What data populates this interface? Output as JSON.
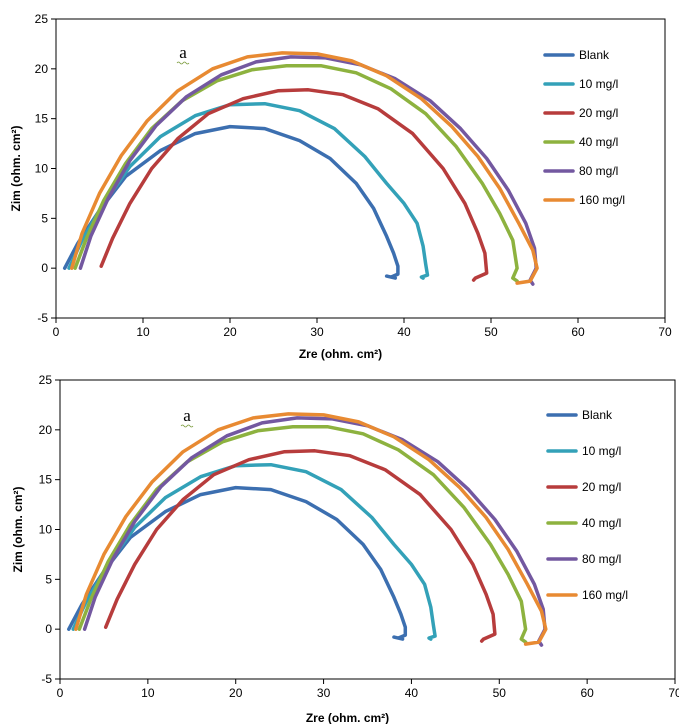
{
  "chart_data": [
    {
      "type": "line",
      "panel_label": "a",
      "xlabel": "Zre (ohm. cm²)",
      "ylabel": "Zim (ohm. cm²)",
      "xlim": [
        0,
        70
      ],
      "ylim": [
        -5,
        25
      ],
      "xticks": [
        0,
        10,
        20,
        30,
        40,
        50,
        60,
        70
      ],
      "yticks": [
        -5,
        0,
        5,
        10,
        15,
        20,
        25
      ],
      "grid": false,
      "legend": "right",
      "series": [
        {
          "name": "Blank",
          "color": "#3c6fb0",
          "x": [
            1.0,
            2.5,
            5.0,
            8.0,
            12.0,
            16.0,
            20.0,
            24.0,
            28.0,
            31.5,
            34.5,
            36.5,
            38.0,
            38.8,
            39.3,
            39.3,
            38.5,
            38.0,
            39.0
          ],
          "y": [
            0.0,
            2.5,
            5.8,
            9.2,
            11.8,
            13.5,
            14.2,
            14.0,
            12.8,
            11.0,
            8.5,
            6.0,
            3.2,
            1.5,
            0.2,
            -0.6,
            -0.9,
            -0.8,
            -1.0
          ]
        },
        {
          "name": "10 mg/l",
          "color": "#33a1b8",
          "x": [
            1.5,
            3.0,
            5.5,
            8.5,
            12.0,
            16.0,
            20.0,
            24.0,
            28.0,
            32.0,
            35.5,
            38.0,
            40.0,
            41.5,
            42.2,
            42.5,
            42.7,
            42.0,
            42.2
          ],
          "y": [
            0.0,
            2.8,
            6.5,
            10.2,
            13.2,
            15.3,
            16.4,
            16.5,
            15.8,
            14.0,
            11.2,
            8.5,
            6.5,
            4.5,
            2.2,
            0.4,
            -0.7,
            -0.9,
            -1.0
          ]
        },
        {
          "name": "20 mg/l",
          "color": "#b73c3c",
          "x": [
            5.2,
            6.5,
            8.5,
            11.0,
            14.0,
            17.5,
            21.5,
            25.5,
            29.0,
            33.0,
            37.0,
            41.0,
            44.5,
            47.0,
            48.5,
            49.3,
            49.5,
            48.2,
            48.0
          ],
          "y": [
            0.2,
            3.0,
            6.5,
            10.0,
            13.0,
            15.5,
            17.0,
            17.8,
            17.9,
            17.4,
            16.0,
            13.5,
            10.0,
            6.5,
            3.5,
            1.5,
            -0.5,
            -1.0,
            -1.2
          ]
        },
        {
          "name": "40 mg/l",
          "color": "#8db23f",
          "x": [
            2.2,
            3.5,
            5.5,
            8.0,
            11.0,
            14.5,
            18.5,
            22.5,
            26.5,
            30.5,
            34.5,
            38.5,
            42.5,
            46.0,
            49.0,
            51.0,
            52.5,
            53.0,
            52.5,
            53.0
          ],
          "y": [
            0.0,
            3.0,
            6.8,
            10.5,
            14.0,
            16.8,
            18.8,
            19.9,
            20.3,
            20.3,
            19.6,
            18.0,
            15.5,
            12.2,
            8.5,
            5.5,
            2.8,
            0.0,
            -1.0,
            -1.3
          ]
        },
        {
          "name": "80 mg/l",
          "color": "#7358a0",
          "x": [
            2.8,
            4.0,
            6.0,
            8.5,
            11.5,
            15.0,
            19.0,
            23.0,
            27.0,
            31.0,
            35.0,
            39.0,
            43.0,
            46.5,
            49.5,
            52.0,
            54.0,
            55.0,
            55.2,
            54.5,
            54.8
          ],
          "y": [
            0.0,
            3.2,
            7.0,
            10.8,
            14.3,
            17.2,
            19.4,
            20.7,
            21.2,
            21.1,
            20.4,
            19.0,
            16.8,
            14.0,
            11.0,
            7.8,
            4.5,
            2.0,
            0.0,
            -1.2,
            -1.6
          ]
        },
        {
          "name": "160 mg/l",
          "color": "#e88a32",
          "x": [
            1.8,
            3.0,
            5.0,
            7.5,
            10.5,
            14.0,
            18.0,
            22.0,
            26.0,
            30.0,
            34.0,
            38.0,
            42.0,
            45.5,
            48.5,
            51.0,
            53.2,
            54.8,
            55.3,
            54.5,
            53.0
          ],
          "y": [
            0.0,
            3.5,
            7.5,
            11.3,
            14.8,
            17.8,
            20.0,
            21.2,
            21.6,
            21.5,
            20.8,
            19.3,
            17.0,
            14.2,
            11.2,
            8.0,
            4.5,
            1.8,
            0.0,
            -1.3,
            -1.5
          ]
        }
      ]
    },
    {
      "type": "line",
      "panel_label": "a",
      "xlabel": "Zre (ohm. cm²)",
      "ylabel": "Zim (ohm. cm²)",
      "xlim": [
        0,
        70
      ],
      "ylim": [
        -5,
        25
      ],
      "xticks": [
        0,
        10,
        20,
        30,
        40,
        50,
        60,
        70
      ],
      "yticks": [
        -5,
        0,
        5,
        10,
        15,
        20,
        25
      ],
      "grid": false,
      "legend": "right",
      "series": [
        {
          "name": "Blank",
          "color": "#3c6fb0",
          "x": [
            1.0,
            2.5,
            5.0,
            8.0,
            12.0,
            16.0,
            20.0,
            24.0,
            28.0,
            31.5,
            34.5,
            36.5,
            38.0,
            38.8,
            39.3,
            39.3,
            38.5,
            38.0,
            39.0
          ],
          "y": [
            0.0,
            2.5,
            5.8,
            9.2,
            11.8,
            13.5,
            14.2,
            14.0,
            12.8,
            11.0,
            8.5,
            6.0,
            3.2,
            1.5,
            0.2,
            -0.6,
            -0.9,
            -0.8,
            -1.0
          ]
        },
        {
          "name": "10 mg/l",
          "color": "#33a1b8",
          "x": [
            1.5,
            3.0,
            5.5,
            8.5,
            12.0,
            16.0,
            20.0,
            24.0,
            28.0,
            32.0,
            35.5,
            38.0,
            40.0,
            41.5,
            42.2,
            42.5,
            42.7,
            42.0,
            42.2
          ],
          "y": [
            0.0,
            2.8,
            6.5,
            10.2,
            13.2,
            15.3,
            16.4,
            16.5,
            15.8,
            14.0,
            11.2,
            8.5,
            6.5,
            4.5,
            2.2,
            0.4,
            -0.7,
            -0.9,
            -1.0
          ]
        },
        {
          "name": "20 mg/l",
          "color": "#b73c3c",
          "x": [
            5.2,
            6.5,
            8.5,
            11.0,
            14.0,
            17.5,
            21.5,
            25.5,
            29.0,
            33.0,
            37.0,
            41.0,
            44.5,
            47.0,
            48.5,
            49.3,
            49.5,
            48.2,
            48.0
          ],
          "y": [
            0.2,
            3.0,
            6.5,
            10.0,
            13.0,
            15.5,
            17.0,
            17.8,
            17.9,
            17.4,
            16.0,
            13.5,
            10.0,
            6.5,
            3.5,
            1.5,
            -0.5,
            -1.0,
            -1.2
          ]
        },
        {
          "name": "40 mg/l",
          "color": "#8db23f",
          "x": [
            2.2,
            3.5,
            5.5,
            8.0,
            11.0,
            14.5,
            18.5,
            22.5,
            26.5,
            30.5,
            34.5,
            38.5,
            42.5,
            46.0,
            49.0,
            51.0,
            52.5,
            53.0,
            52.5,
            53.0
          ],
          "y": [
            0.0,
            3.0,
            6.8,
            10.5,
            14.0,
            16.8,
            18.8,
            19.9,
            20.3,
            20.3,
            19.6,
            18.0,
            15.5,
            12.2,
            8.5,
            5.5,
            2.8,
            0.0,
            -1.0,
            -1.3
          ]
        },
        {
          "name": "80 mg/l",
          "color": "#7358a0",
          "x": [
            2.8,
            4.0,
            6.0,
            8.5,
            11.5,
            15.0,
            19.0,
            23.0,
            27.0,
            31.0,
            35.0,
            39.0,
            43.0,
            46.5,
            49.5,
            52.0,
            54.0,
            55.0,
            55.2,
            54.5,
            54.8
          ],
          "y": [
            0.0,
            3.2,
            7.0,
            10.8,
            14.3,
            17.2,
            19.4,
            20.7,
            21.2,
            21.1,
            20.4,
            19.0,
            16.8,
            14.0,
            11.0,
            7.8,
            4.5,
            2.0,
            0.0,
            -1.2,
            -1.6
          ]
        },
        {
          "name": "160 mg/l",
          "color": "#e88a32",
          "x": [
            1.8,
            3.0,
            5.0,
            7.5,
            10.5,
            14.0,
            18.0,
            22.0,
            26.0,
            30.0,
            34.0,
            38.0,
            42.0,
            45.5,
            48.5,
            51.0,
            53.2,
            54.8,
            55.3,
            54.5,
            53.0
          ],
          "y": [
            0.0,
            3.5,
            7.5,
            11.3,
            14.8,
            17.8,
            20.0,
            21.2,
            21.6,
            21.5,
            20.8,
            19.3,
            17.0,
            14.2,
            11.2,
            8.0,
            4.5,
            1.8,
            0.0,
            -1.3,
            -1.5
          ]
        }
      ]
    }
  ]
}
